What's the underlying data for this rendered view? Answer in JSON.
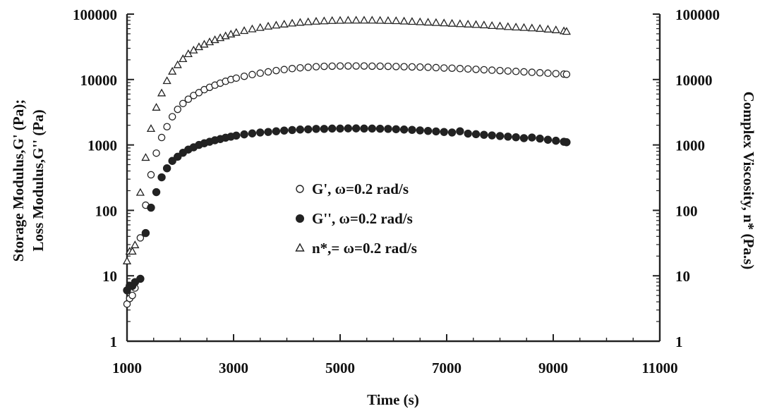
{
  "chart_data": {
    "type": "scatter",
    "title": "",
    "xlabel": "Time (s)",
    "ylabel_left": [
      "Storage Modulus,G' (Pa);",
      "Loss Modulus,G'' (Pa)"
    ],
    "ylabel_right": "Complex Viscosity, n* (Pa.s)",
    "xlim": [
      1000,
      11000
    ],
    "ylim": [
      1,
      100000
    ],
    "yscale": "log",
    "x_ticks": [
      "1000",
      "3000",
      "5000",
      "7000",
      "9000",
      "11000"
    ],
    "y_ticks_left": [
      "1",
      "10",
      "100",
      "1000",
      "10000",
      "100000"
    ],
    "y_ticks_right": [
      "1",
      "10",
      "100",
      "1000",
      "10000",
      "100000"
    ],
    "grid": false,
    "legend_position": "center",
    "legend": [
      "G', ω=0.2 rad/s",
      "G'', ω=0.2 rad/s",
      "n*,= ω=0.2 rad/s"
    ],
    "series": [
      {
        "name": "G', ω=0.2 rad/s",
        "marker": "open-circle",
        "x": [
          1000,
          1050,
          1100,
          1150,
          1250,
          1350,
          1450,
          1550,
          1650,
          1750,
          1850,
          1950,
          2050,
          2150,
          2250,
          2350,
          2450,
          2550,
          2650,
          2750,
          2850,
          2950,
          3050,
          3200,
          3350,
          3500,
          3650,
          3800,
          3950,
          4100,
          4250,
          4400,
          4550,
          4700,
          4850,
          5000,
          5150,
          5300,
          5450,
          5600,
          5750,
          5900,
          6050,
          6200,
          6350,
          6500,
          6650,
          6800,
          6950,
          7100,
          7250,
          7400,
          7550,
          7700,
          7850,
          8000,
          8150,
          8300,
          8450,
          8600,
          8750,
          8900,
          9050,
          9200,
          9250
        ],
        "y": [
          3.7,
          4.5,
          5.0,
          6.5,
          38,
          120,
          350,
          750,
          1300,
          1900,
          2700,
          3500,
          4300,
          5000,
          5700,
          6300,
          7000,
          7600,
          8200,
          8800,
          9400,
          10000,
          10500,
          11200,
          11900,
          12500,
          13100,
          13700,
          14200,
          14700,
          15100,
          15400,
          15700,
          15900,
          16000,
          16100,
          16100,
          16100,
          16100,
          16000,
          16000,
          15900,
          15800,
          15700,
          15600,
          15500,
          15400,
          15200,
          15000,
          14900,
          14700,
          14500,
          14300,
          14100,
          13900,
          13700,
          13500,
          13300,
          13100,
          12900,
          12700,
          12500,
          12300,
          12100,
          12000
        ]
      },
      {
        "name": "G'', ω=0.2 rad/s",
        "marker": "filled-circle",
        "x": [
          1000,
          1050,
          1100,
          1150,
          1250,
          1350,
          1450,
          1550,
          1650,
          1750,
          1850,
          1950,
          2050,
          2150,
          2250,
          2350,
          2450,
          2550,
          2650,
          2750,
          2850,
          2950,
          3050,
          3200,
          3350,
          3500,
          3650,
          3800,
          3950,
          4100,
          4250,
          4400,
          4550,
          4700,
          4850,
          5000,
          5150,
          5300,
          5450,
          5600,
          5750,
          5900,
          6050,
          6200,
          6350,
          6500,
          6650,
          6800,
          6950,
          7100,
          7250,
          7400,
          7550,
          7700,
          7850,
          8000,
          8150,
          8300,
          8450,
          8600,
          8750,
          8900,
          9050,
          9200,
          9250
        ],
        "y": [
          6.0,
          7.0,
          7.0,
          8.0,
          9.0,
          45,
          110,
          190,
          320,
          440,
          570,
          660,
          760,
          850,
          920,
          1000,
          1060,
          1120,
          1180,
          1230,
          1290,
          1340,
          1390,
          1450,
          1500,
          1550,
          1580,
          1620,
          1660,
          1690,
          1720,
          1730,
          1760,
          1760,
          1780,
          1780,
          1790,
          1790,
          1780,
          1780,
          1770,
          1760,
          1740,
          1720,
          1700,
          1670,
          1640,
          1610,
          1580,
          1550,
          1620,
          1490,
          1460,
          1430,
          1400,
          1370,
          1340,
          1310,
          1270,
          1300,
          1250,
          1200,
          1160,
          1120,
          1100
        ]
      },
      {
        "name": "n*,= ω=0.2 rad/s",
        "marker": "open-triangle",
        "x": [
          1000,
          1050,
          1100,
          1150,
          1250,
          1350,
          1450,
          1550,
          1650,
          1750,
          1850,
          1950,
          2050,
          2150,
          2250,
          2350,
          2450,
          2550,
          2650,
          2750,
          2850,
          2950,
          3050,
          3200,
          3350,
          3500,
          3650,
          3800,
          3950,
          4100,
          4250,
          4400,
          4550,
          4700,
          4850,
          5000,
          5150,
          5300,
          5450,
          5600,
          5750,
          5900,
          6050,
          6200,
          6350,
          6500,
          6650,
          6800,
          6950,
          7100,
          7250,
          7400,
          7550,
          7700,
          7850,
          8000,
          8150,
          8300,
          8450,
          8600,
          8750,
          8900,
          9050,
          9200,
          9250
        ],
        "y": [
          17,
          24,
          24,
          30,
          190,
          650,
          1800,
          3800,
          6300,
          9700,
          13500,
          17000,
          21000,
          25000,
          28500,
          32000,
          35000,
          38000,
          41000,
          44000,
          47000,
          50000,
          53000,
          56500,
          60000,
          63000,
          66000,
          68500,
          71000,
          73500,
          75500,
          77000,
          78500,
          79500,
          80500,
          81000,
          81500,
          81500,
          81500,
          81500,
          81000,
          80500,
          80000,
          79000,
          78000,
          77000,
          76000,
          75000,
          74000,
          73000,
          72000,
          71000,
          70000,
          69000,
          67500,
          66500,
          65000,
          64000,
          63000,
          62000,
          61000,
          59500,
          58000,
          56000,
          55000
        ]
      }
    ]
  }
}
